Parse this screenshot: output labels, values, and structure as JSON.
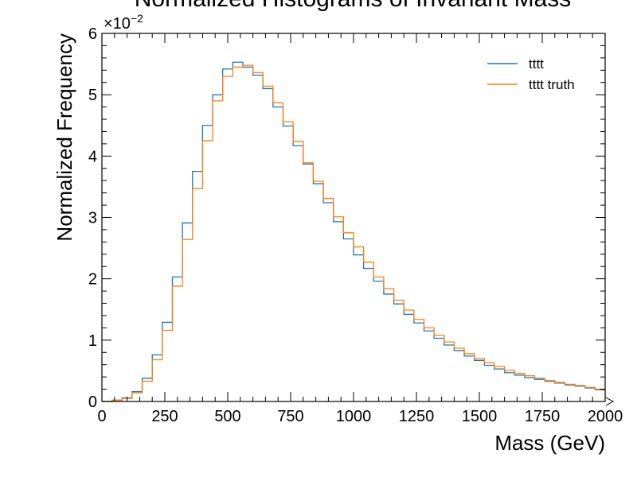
{
  "chart_data": {
    "type": "histogram",
    "title": "Normalized Histograms of Invariant Mass",
    "xlabel": "Mass (GeV)",
    "ylabel": "Normalized Frequency",
    "xlim": [
      0,
      2000
    ],
    "ylim": [
      0,
      6
    ],
    "y_scale_prefix": "×10",
    "y_scale_exponent": "−2",
    "x_ticks": [
      0,
      250,
      500,
      750,
      1000,
      1250,
      1500,
      1750,
      2000
    ],
    "x_tick_labels": [
      "0",
      "250",
      "500",
      "750",
      "1000",
      "1250",
      "1500",
      "1750",
      "2000"
    ],
    "y_ticks": [
      0,
      1,
      2,
      3,
      4,
      5,
      6
    ],
    "y_tick_labels": [
      "0",
      "1",
      "2",
      "3",
      "4",
      "5",
      "6"
    ],
    "grid": false,
    "legend_position": "top-right",
    "bin_width": 40,
    "bin_edges_start": 0,
    "series": [
      {
        "name": "tttt",
        "color": "#1f77b4",
        "values": [
          0.0,
          0.02,
          0.06,
          0.16,
          0.38,
          0.76,
          1.29,
          2.03,
          2.91,
          3.75,
          4.5,
          5.0,
          5.42,
          5.53,
          5.45,
          5.32,
          5.1,
          4.8,
          4.49,
          4.17,
          3.87,
          3.55,
          3.24,
          2.93,
          2.65,
          2.39,
          2.17,
          1.96,
          1.75,
          1.59,
          1.42,
          1.28,
          1.15,
          1.03,
          0.92,
          0.83,
          0.74,
          0.67,
          0.59,
          0.53,
          0.47,
          0.43,
          0.39,
          0.36,
          0.33,
          0.3,
          0.27,
          0.25,
          0.22,
          0.19
        ]
      },
      {
        "name": "tttt truth",
        "color": "#ff7f0e",
        "values": [
          0.0,
          0.02,
          0.05,
          0.14,
          0.33,
          0.68,
          1.16,
          1.88,
          2.64,
          3.47,
          4.25,
          4.9,
          5.3,
          5.45,
          5.48,
          5.36,
          5.14,
          4.87,
          4.56,
          4.24,
          3.89,
          3.59,
          3.31,
          3.01,
          2.75,
          2.52,
          2.27,
          2.03,
          1.84,
          1.65,
          1.49,
          1.34,
          1.2,
          1.08,
          0.97,
          0.87,
          0.78,
          0.7,
          0.63,
          0.57,
          0.51,
          0.46,
          0.42,
          0.38,
          0.34,
          0.31,
          0.28,
          0.26,
          0.23,
          0.2
        ]
      }
    ]
  }
}
